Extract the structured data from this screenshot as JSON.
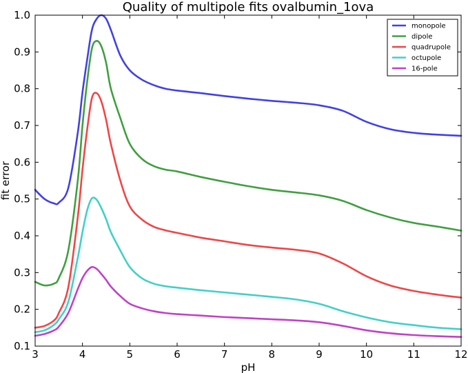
{
  "chart_data": {
    "type": "line",
    "title": "Quality of multipole fits ovalbumin_1ova",
    "xlabel": "pH",
    "ylabel": "fit error",
    "xlim": [
      3,
      12
    ],
    "ylim": [
      0.1,
      1.0
    ],
    "xticks": [
      3,
      4,
      5,
      6,
      7,
      8,
      9,
      10,
      11,
      12
    ],
    "yticks": [
      0.1,
      0.2,
      0.3,
      0.4,
      0.5,
      0.6,
      0.7,
      0.8,
      0.9,
      1.0
    ],
    "grid": false,
    "legend_position": "top-right",
    "x": [
      3.0,
      3.2,
      3.4,
      3.5,
      3.7,
      3.9,
      4.0,
      4.1,
      4.2,
      4.3,
      4.4,
      4.5,
      4.6,
      4.8,
      5.0,
      5.25,
      5.5,
      5.75,
      6.0,
      6.5,
      7.0,
      7.5,
      8.0,
      8.5,
      9.0,
      9.5,
      10.0,
      10.5,
      11.0,
      11.5,
      12.0
    ],
    "series": [
      {
        "name": "monopole",
        "color": "#4040e8",
        "values": [
          0.525,
          0.5,
          0.488,
          0.49,
          0.53,
          0.68,
          0.79,
          0.88,
          0.96,
          0.99,
          1.0,
          0.99,
          0.96,
          0.89,
          0.85,
          0.825,
          0.81,
          0.8,
          0.795,
          0.788,
          0.78,
          0.773,
          0.767,
          0.762,
          0.755,
          0.74,
          0.71,
          0.69,
          0.68,
          0.675,
          0.672
        ]
      },
      {
        "name": "dipole",
        "color": "#3f9f3f",
        "values": [
          0.275,
          0.265,
          0.27,
          0.285,
          0.36,
          0.55,
          0.7,
          0.82,
          0.91,
          0.93,
          0.915,
          0.87,
          0.8,
          0.72,
          0.65,
          0.61,
          0.59,
          0.58,
          0.575,
          0.56,
          0.547,
          0.535,
          0.525,
          0.518,
          0.51,
          0.495,
          0.47,
          0.45,
          0.435,
          0.425,
          0.414
        ]
      },
      {
        "name": "quadrupole",
        "color": "#f04545",
        "values": [
          0.15,
          0.155,
          0.17,
          0.19,
          0.26,
          0.45,
          0.58,
          0.69,
          0.775,
          0.788,
          0.765,
          0.715,
          0.65,
          0.55,
          0.48,
          0.445,
          0.425,
          0.415,
          0.408,
          0.395,
          0.385,
          0.375,
          0.368,
          0.362,
          0.352,
          0.325,
          0.29,
          0.265,
          0.25,
          0.24,
          0.232
        ]
      },
      {
        "name": "octupole",
        "color": "#40d0c8",
        "values": [
          0.138,
          0.143,
          0.158,
          0.173,
          0.22,
          0.34,
          0.41,
          0.47,
          0.502,
          0.498,
          0.475,
          0.445,
          0.41,
          0.36,
          0.315,
          0.285,
          0.27,
          0.263,
          0.259,
          0.252,
          0.246,
          0.24,
          0.234,
          0.227,
          0.215,
          0.195,
          0.178,
          0.165,
          0.157,
          0.15,
          0.146
        ]
      },
      {
        "name": "16-pole",
        "color": "#c040c8",
        "values": [
          0.128,
          0.133,
          0.143,
          0.153,
          0.19,
          0.255,
          0.285,
          0.305,
          0.315,
          0.31,
          0.296,
          0.28,
          0.262,
          0.236,
          0.215,
          0.203,
          0.195,
          0.19,
          0.187,
          0.183,
          0.179,
          0.176,
          0.173,
          0.17,
          0.165,
          0.155,
          0.143,
          0.135,
          0.13,
          0.127,
          0.125
        ]
      }
    ]
  }
}
